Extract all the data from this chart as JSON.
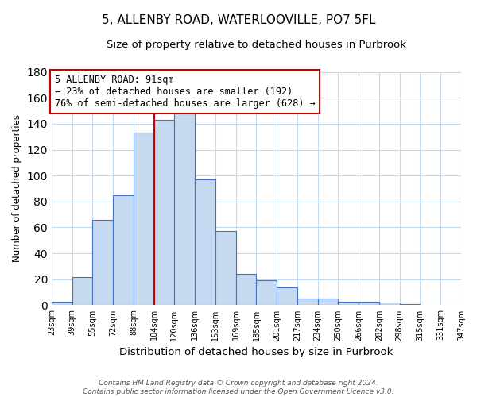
{
  "title": "5, ALLENBY ROAD, WATERLOOVILLE, PO7 5FL",
  "subtitle": "Size of property relative to detached houses in Purbrook",
  "xlabel": "Distribution of detached houses by size in Purbrook",
  "ylabel": "Number of detached properties",
  "bar_values": [
    3,
    22,
    66,
    85,
    133,
    143,
    150,
    97,
    57,
    24,
    19,
    14,
    5,
    5,
    3,
    3,
    2,
    1
  ],
  "bin_labels": [
    "23sqm",
    "39sqm",
    "55sqm",
    "72sqm",
    "88sqm",
    "104sqm",
    "120sqm",
    "136sqm",
    "153sqm",
    "169sqm",
    "185sqm",
    "201sqm",
    "217sqm",
    "234sqm",
    "250sqm",
    "266sqm",
    "282sqm",
    "298sqm",
    "315sqm",
    "331sqm",
    "347sqm"
  ],
  "bar_color": "#c5d9f1",
  "bar_edge_color": "#4472c4",
  "highlight_line_color": "#cc0000",
  "highlight_line_bin_index": 4,
  "annotation_title": "5 ALLENBY ROAD: 91sqm",
  "annotation_line1": "← 23% of detached houses are smaller (192)",
  "annotation_line2": "76% of semi-detached houses are larger (628) →",
  "annotation_box_color": "#ffffff",
  "annotation_box_edge": "#cc0000",
  "ylim": [
    0,
    180
  ],
  "yticks": [
    0,
    20,
    40,
    60,
    80,
    100,
    120,
    140,
    160,
    180
  ],
  "footer_line1": "Contains HM Land Registry data © Crown copyright and database right 2024.",
  "footer_line2": "Contains public sector information licensed under the Open Government Licence v3.0.",
  "background_color": "#ffffff",
  "grid_color": "#c5d9f1"
}
